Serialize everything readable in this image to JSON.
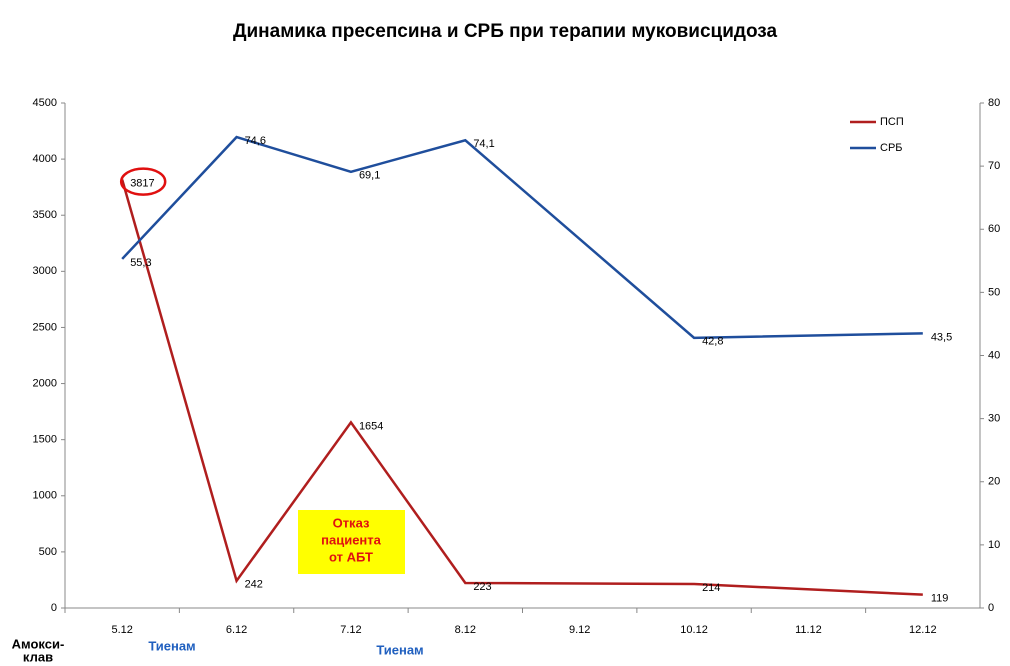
{
  "chart_data": {
    "type": "line",
    "title": "Динамика пресепсина и СРБ при терапии муковисцидоза",
    "categories": [
      "5.12",
      "6.12",
      "7.12",
      "8.12",
      "9.12",
      "10.12",
      "11.12",
      "12.12"
    ],
    "series": [
      {
        "name": "ПСП",
        "color": "#b01e1e",
        "values": [
          3817,
          242,
          1654,
          223,
          null,
          214,
          null,
          119
        ]
      },
      {
        "name": "СРБ",
        "color": "#1f4e9c",
        "axis": "y2",
        "values": [
          55.3,
          74.6,
          69.1,
          74.1,
          null,
          42.8,
          null,
          43.5
        ],
        "value_labels": [
          "55,3",
          "74,6",
          "69,1",
          "74,1",
          null,
          "42,8",
          null,
          "43,5"
        ]
      }
    ],
    "connect_gaps": true,
    "ylim": [
      0,
      4500
    ],
    "yticks": [
      0,
      500,
      1000,
      1500,
      2000,
      2500,
      3000,
      3500,
      4000,
      4500
    ],
    "y2lim": [
      0,
      80
    ],
    "y2ticks": [
      0,
      10,
      20,
      30,
      40,
      50,
      60,
      70,
      80
    ],
    "legend": "top-right",
    "annotation_box": {
      "lines": [
        "Отказ",
        "пациента",
        "от АБТ"
      ],
      "color": "#ffff00",
      "text_color": "#e01010"
    },
    "therapy_labels": [
      {
        "lines": [
          "Амокси-",
          "клав"
        ],
        "color": "#000000"
      },
      {
        "lines": [
          "Тиенам"
        ],
        "color": "#1f5fbf"
      },
      {
        "lines": [
          "Тиенам"
        ],
        "color": "#1f5fbf"
      }
    ]
  }
}
